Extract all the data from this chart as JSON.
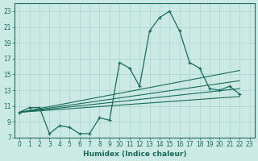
{
  "xlabel": "Humidex (Indice chaleur)",
  "background_color": "#cceae4",
  "grid_color": "#aad4cc",
  "line_color": "#1a6b5a",
  "xlim": [
    -0.5,
    23.5
  ],
  "ylim": [
    7,
    24
  ],
  "yticks": [
    7,
    9,
    11,
    13,
    15,
    17,
    19,
    21,
    23
  ],
  "xticks": [
    0,
    1,
    2,
    3,
    4,
    5,
    6,
    7,
    8,
    9,
    10,
    11,
    12,
    13,
    14,
    15,
    16,
    17,
    18,
    19,
    20,
    21,
    22,
    23
  ],
  "main_x": [
    0,
    1,
    2,
    3,
    4,
    5,
    6,
    7,
    8,
    9,
    10,
    11,
    12,
    13,
    14,
    15,
    16,
    17,
    18,
    19,
    20,
    21,
    22
  ],
  "main_y": [
    10.2,
    10.8,
    10.8,
    7.5,
    8.5,
    8.3,
    7.5,
    7.5,
    9.5,
    9.2,
    16.5,
    15.8,
    13.5,
    20.5,
    22.2,
    23.0,
    20.5,
    16.5,
    15.8,
    13.2,
    13.0,
    13.5,
    12.5
  ],
  "diag_lines": [
    {
      "x0": 0,
      "y0": 10.2,
      "x1": 22,
      "y1": 12.2
    },
    {
      "x0": 0,
      "y0": 10.2,
      "x1": 22,
      "y1": 13.2
    },
    {
      "x0": 0,
      "y0": 10.2,
      "x1": 22,
      "y1": 14.2
    },
    {
      "x0": 0,
      "y0": 10.2,
      "x1": 22,
      "y1": 15.5
    }
  ]
}
